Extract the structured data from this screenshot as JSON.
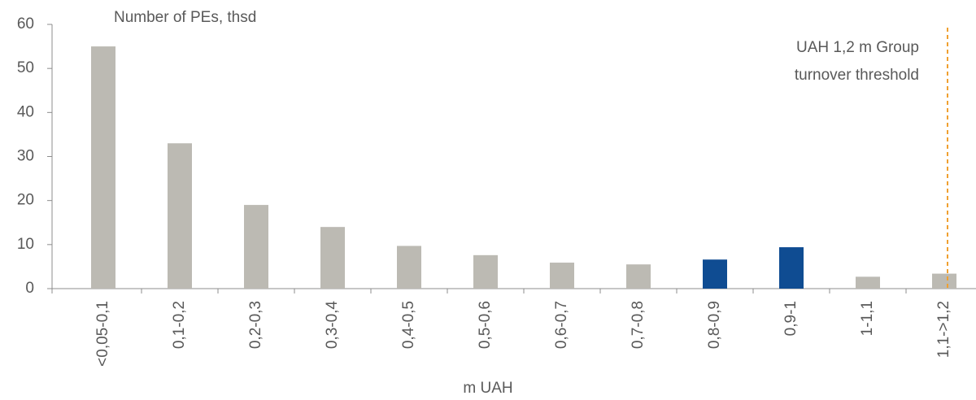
{
  "chart_data": {
    "type": "bar",
    "ylabel": "Number of PEs, thsd",
    "xlabel": "m UAH",
    "annotation": [
      "UAH 1,2 m Group",
      "turnover threshold"
    ],
    "categories": [
      "<0,05-0,1",
      "0,1-0,2",
      "0,2-0,3",
      "0,3-0,4",
      "0,4-0,5",
      "0,5-0,6",
      "0,6-0,7",
      "0,7-0,8",
      "0,8-0,9",
      "0,9-1",
      "1-1,1",
      "1,1->1,2"
    ],
    "values": [
      55,
      33,
      19,
      14,
      9.7,
      7.6,
      5.9,
      5.5,
      6.6,
      9.4,
      2.7,
      3.4
    ],
    "colors": [
      "#bcbab3",
      "#bcbab3",
      "#bcbab3",
      "#bcbab3",
      "#bcbab3",
      "#bcbab3",
      "#bcbab3",
      "#bcbab3",
      "#0f4c92",
      "#0f4c92",
      "#bcbab3",
      "#bcbab3"
    ],
    "ylim": [
      0,
      60
    ],
    "yticks": [
      0,
      10,
      20,
      30,
      40,
      50,
      60
    ],
    "grid": false
  }
}
